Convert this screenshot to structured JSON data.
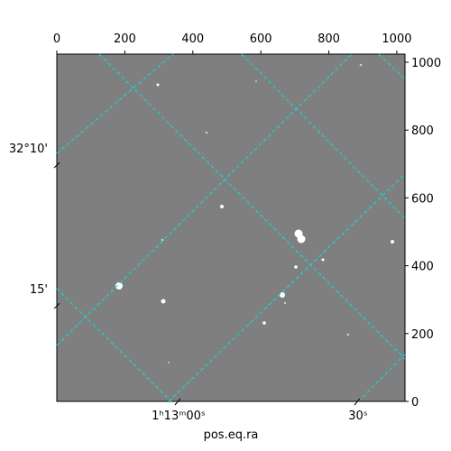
{
  "chart_data": {
    "type": "image",
    "xlabel": "pos.eq.ra",
    "xlim": [
      0,
      1024
    ],
    "ylim": [
      0,
      1024
    ],
    "xticks": [
      0,
      200,
      400,
      600,
      800,
      1000
    ],
    "yticks": [
      0,
      200,
      400,
      600,
      800,
      1000
    ],
    "ra_ticks": [
      {
        "value": 358,
        "label": "1ʰ13ᵐ00ˢ"
      },
      {
        "value": 886,
        "label": "30ˢ"
      }
    ],
    "dec_ticks": [
      {
        "value": 747,
        "label": "32°10'"
      },
      {
        "value": 332,
        "label": "15'"
      }
    ],
    "background": "#7f7f7f"
  }
}
